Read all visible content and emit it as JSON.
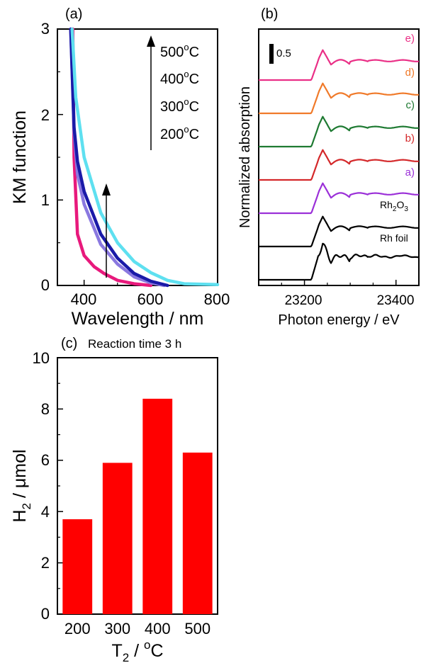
{
  "chart_data": [
    {
      "panel": "(a)",
      "type": "line",
      "xlabel": "Wavelength / nm",
      "ylabel": "KM function",
      "xlim": [
        320,
        800
      ],
      "ylim": [
        0,
        3
      ],
      "xticks": [
        "400",
        "600",
        "800"
      ],
      "yticks": [
        "0",
        "1",
        "2",
        "3"
      ],
      "legend": [
        "500°C",
        "400°C",
        "300°C",
        "200°C"
      ],
      "series": [
        {
          "name": "200°C",
          "color": "#e8197c",
          "x": [
            366,
            370,
            380,
            400,
            430,
            460,
            500,
            550,
            600
          ],
          "y": [
            3.0,
            1.5,
            0.6,
            0.35,
            0.22,
            0.14,
            0.06,
            0.02,
            0.0
          ]
        },
        {
          "name": "300°C",
          "color": "#8a78e0",
          "x": [
            360,
            370,
            380,
            400,
            450,
            500,
            550,
            600,
            640
          ],
          "y": [
            3.0,
            1.8,
            1.3,
            0.95,
            0.48,
            0.25,
            0.1,
            0.03,
            0.0
          ]
        },
        {
          "name": "400°C",
          "color": "#1a1aa8",
          "x": [
            360,
            370,
            380,
            400,
            450,
            500,
            550,
            600,
            650
          ],
          "y": [
            3.0,
            1.85,
            1.45,
            1.1,
            0.6,
            0.32,
            0.14,
            0.05,
            0.0
          ]
        },
        {
          "name": "500°C",
          "color": "#5ee0f0",
          "x": [
            364,
            375,
            400,
            450,
            500,
            550,
            600,
            650,
            700,
            800
          ],
          "y": [
            3.0,
            2.2,
            1.5,
            0.85,
            0.5,
            0.28,
            0.15,
            0.06,
            0.02,
            0.01
          ]
        }
      ]
    },
    {
      "panel": "(b)",
      "type": "line",
      "xlabel": "Photon energy / eV",
      "ylabel": "Normalized absorption",
      "xlim": [
        23100,
        23450
      ],
      "xticks": [
        "23200",
        "23400"
      ],
      "scale_bar": "0.5",
      "series": [
        {
          "name": "Rh foil",
          "color": "#000000",
          "offset": 0
        },
        {
          "name": "Rh2O3",
          "color": "#000000",
          "offset": 1
        },
        {
          "name": "a)",
          "color": "#9b30d8",
          "offset": 2
        },
        {
          "name": "b)",
          "color": "#d4282a",
          "offset": 3
        },
        {
          "name": "c)",
          "color": "#1e7a32",
          "offset": 4
        },
        {
          "name": "d)",
          "color": "#f07a2a",
          "offset": 5
        },
        {
          "name": "e)",
          "color": "#ea2f86",
          "offset": 6
        }
      ]
    },
    {
      "panel": "(c)",
      "type": "bar",
      "title": "Reaction time 3 h",
      "xlabel": "T2 / oC",
      "ylabel": "H2 / μmol",
      "categories": [
        "200",
        "300",
        "400",
        "500"
      ],
      "values": [
        3.7,
        5.9,
        8.4,
        6.3
      ],
      "ylim": [
        0,
        10
      ],
      "yticks": [
        "0",
        "2",
        "4",
        "6",
        "8",
        "10"
      ],
      "bar_color": "#ff0000"
    }
  ],
  "labels": {
    "a_panel": "(a)",
    "a_ylabel": "KM function",
    "a_xlabel": "Wavelength / nm",
    "a_legend_500": "500",
    "a_legend_400": "400",
    "a_legend_300": "300",
    "a_legend_200": "200",
    "a_legend_unit": "C",
    "a_legend_deg": "o",
    "b_panel": "(b)",
    "b_ylabel": "Normalized absorption",
    "b_xlabel": "Photon energy / eV",
    "b_scale": "0.5",
    "b_label_e": "e)",
    "b_label_d": "d)",
    "b_label_c": "c)",
    "b_label_b": "b)",
    "b_label_a": "a)",
    "b_label_rh2o3": "Rh",
    "b_label_rh2o3_sub1": "2",
    "b_label_rh2o3_mid": "O",
    "b_label_rh2o3_sub2": "3",
    "b_label_rhfoil": "Rh foil",
    "c_panel": "(c)",
    "c_title": "Reaction time 3 h",
    "c_ylabel_main": "H",
    "c_ylabel_sub": "2",
    "c_ylabel_rest": " / μmol",
    "c_xlabel_main": "T",
    "c_xlabel_sub": "2",
    "c_xlabel_rest": " / ",
    "c_xlabel_deg": "o",
    "c_xlabel_unit": "C"
  }
}
